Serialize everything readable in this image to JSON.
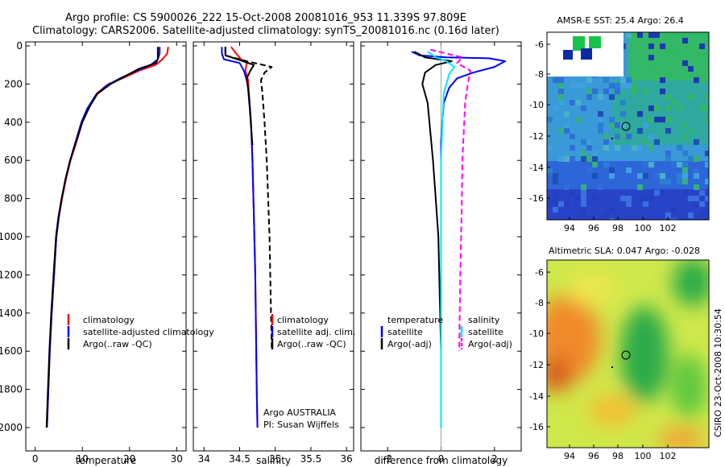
{
  "title": {
    "line1": "Argo profile: CS 5900026_222 15-Oct-2008 20081016_953 11.339S 97.809E",
    "line2": "Climatology: CARS2006. Satellite-adjusted climatology: synTS_20081016.nc (0.16d later)"
  },
  "side_label": "CSIRO 23-Oct-2008 10:30:54",
  "colors": {
    "red": "#ff0000",
    "blue": "#0000ff",
    "black": "#000000",
    "magenta": "#ff00ff",
    "cyan": "#00e5ff"
  },
  "chart_data": [
    {
      "type": "line",
      "id": "temperature",
      "xlabel": "temperature",
      "ylabel": "",
      "xlim": [
        -2,
        32
      ],
      "ylim": [
        2050,
        0
      ],
      "xticks": [
        0,
        10,
        20,
        30
      ],
      "yticks": [
        0,
        200,
        400,
        600,
        800,
        1000,
        1200,
        1400,
        1600,
        1800,
        2000
      ],
      "legend": [
        "climatology",
        "satellite-adjusted climatology",
        "Argo(..raw -QC)"
      ],
      "series": [
        {
          "name": "climatology",
          "color": "red",
          "dash": false,
          "points": [
            [
              28.2,
              5
            ],
            [
              28.0,
              40
            ],
            [
              27.0,
              70
            ],
            [
              25.5,
              100
            ],
            [
              22.0,
              130
            ],
            [
              18.5,
              170
            ],
            [
              15.5,
              200
            ],
            [
              13.0,
              250
            ],
            [
              11.5,
              320
            ],
            [
              10.0,
              400
            ],
            [
              8.8,
              500
            ],
            [
              7.5,
              600
            ],
            [
              6.5,
              700
            ],
            [
              5.7,
              800
            ],
            [
              5.0,
              900
            ],
            [
              4.5,
              1000
            ],
            [
              4.0,
              1200
            ],
            [
              3.5,
              1400
            ],
            [
              3.1,
              1600
            ],
            [
              2.8,
              1800
            ],
            [
              2.5,
              2000
            ]
          ]
        },
        {
          "name": "satellite-adjusted climatology",
          "color": "blue",
          "dash": false,
          "points": [
            [
              26.4,
              5
            ],
            [
              26.4,
              40
            ],
            [
              26.0,
              70
            ],
            [
              24.5,
              100
            ],
            [
              21.5,
              130
            ],
            [
              18.0,
              170
            ],
            [
              15.0,
              210
            ],
            [
              12.8,
              260
            ],
            [
              11.0,
              330
            ],
            [
              9.8,
              400
            ],
            [
              8.6,
              500
            ],
            [
              7.4,
              600
            ],
            [
              6.4,
              700
            ],
            [
              5.6,
              800
            ],
            [
              5.0,
              900
            ],
            [
              4.5,
              1000
            ],
            [
              4.0,
              1200
            ],
            [
              3.5,
              1400
            ],
            [
              3.1,
              1600
            ],
            [
              2.8,
              1800
            ],
            [
              2.5,
              2000
            ]
          ]
        },
        {
          "name": "Argo(..raw -QC)",
          "color": "black",
          "dash": false,
          "points": [
            [
              26.0,
              5
            ],
            [
              26.0,
              70
            ],
            [
              25.6,
              90
            ],
            [
              22.0,
              120
            ],
            [
              19.0,
              160
            ],
            [
              16.0,
              200
            ],
            [
              13.2,
              250
            ],
            [
              11.5,
              320
            ],
            [
              10.0,
              400
            ],
            [
              8.7,
              500
            ],
            [
              7.4,
              600
            ],
            [
              6.4,
              700
            ],
            [
              5.6,
              800
            ],
            [
              4.9,
              900
            ],
            [
              4.4,
              1000
            ],
            [
              3.9,
              1200
            ],
            [
              3.4,
              1400
            ],
            [
              3.0,
              1600
            ],
            [
              2.7,
              1800
            ],
            [
              2.4,
              2000
            ]
          ]
        }
      ],
      "annotations": []
    },
    {
      "type": "line",
      "id": "salinity",
      "xlabel": "salinity",
      "ylabel": "",
      "xlim": [
        33.85,
        36.1
      ],
      "ylim": [
        2050,
        0
      ],
      "xticks": [
        34,
        34.5,
        35,
        35.5,
        36
      ],
      "yticks": [
        0,
        200,
        400,
        600,
        800,
        1000,
        1200,
        1400,
        1600,
        1800,
        2000
      ],
      "legend": [
        "climatology",
        "satellite adj. clim.",
        "Argo(..raw -QC)"
      ],
      "series": [
        {
          "name": "climatology",
          "color": "red",
          "dash": false,
          "points": [
            [
              34.38,
              5
            ],
            [
              34.45,
              40
            ],
            [
              34.52,
              70
            ],
            [
              34.6,
              90
            ],
            [
              34.58,
              130
            ],
            [
              34.62,
              180
            ],
            [
              34.63,
              250
            ],
            [
              34.66,
              400
            ],
            [
              34.68,
              600
            ],
            [
              34.7,
              900
            ],
            [
              34.72,
              1200
            ],
            [
              34.73,
              1500
            ],
            [
              34.74,
              1800
            ],
            [
              34.75,
              2000
            ]
          ]
        },
        {
          "name": "satellite adj. clim.",
          "color": "blue",
          "dash": false,
          "points": [
            [
              34.25,
              5
            ],
            [
              34.25,
              40
            ],
            [
              34.28,
              70
            ],
            [
              34.5,
              90
            ],
            [
              34.56,
              130
            ],
            [
              34.6,
              180
            ],
            [
              34.63,
              250
            ],
            [
              34.66,
              400
            ],
            [
              34.68,
              600
            ],
            [
              34.7,
              900
            ],
            [
              34.72,
              1200
            ],
            [
              34.73,
              1500
            ],
            [
              34.74,
              1800
            ],
            [
              34.75,
              2000
            ]
          ]
        },
        {
          "name": "Argo(..raw -QC)",
          "color": "black",
          "dash": false,
          "points": [
            [
              34.3,
              5
            ],
            [
              34.3,
              50
            ],
            [
              34.55,
              80
            ],
            [
              34.7,
              100
            ],
            [
              34.65,
              130
            ],
            [
              34.6,
              170
            ],
            [
              34.62,
              230
            ],
            [
              34.64,
              320
            ],
            [
              34.66,
              420
            ],
            [
              34.68,
              520
            ]
          ]
        },
        {
          "name": "Argo(..raw -QC) adj",
          "color": "black",
          "dash": true,
          "points": [
            [
              34.3,
              5
            ],
            [
              34.3,
              50
            ],
            [
              34.6,
              80
            ],
            [
              34.95,
              110
            ],
            [
              34.85,
              140
            ],
            [
              34.8,
              180
            ],
            [
              34.82,
              250
            ],
            [
              34.85,
              400
            ],
            [
              34.88,
              600
            ],
            [
              34.9,
              800
            ],
            [
              34.92,
              1000
            ],
            [
              34.93,
              1200
            ],
            [
              34.94,
              1400
            ],
            [
              34.95,
              1580
            ]
          ]
        }
      ],
      "annotations": [
        "Argo AUSTRALIA",
        "PI: Susan Wijffels"
      ]
    },
    {
      "type": "line",
      "id": "difference",
      "xlabel": "difference from climatology",
      "ylabel": "",
      "xlim": [
        -3.0,
        3.0
      ],
      "ylim": [
        2050,
        0
      ],
      "xticks": [
        -2,
        0,
        2
      ],
      "yticks": [
        0,
        200,
        400,
        600,
        800,
        1000,
        1200,
        1400,
        1600,
        1800,
        2000
      ],
      "legend_left": [
        "temperature",
        "satellite",
        "Argo(-adj)"
      ],
      "legend_right": [
        "salinity",
        "satellite",
        "Argo(-adj)"
      ],
      "series": [
        {
          "name": "temperature satellite",
          "color": "blue",
          "dash": false,
          "points": [
            [
              -1.1,
              30
            ],
            [
              -0.8,
              50
            ],
            [
              0.2,
              60
            ],
            [
              1.8,
              65
            ],
            [
              2.4,
              80
            ],
            [
              2.0,
              110
            ],
            [
              1.2,
              140
            ],
            [
              0.6,
              170
            ],
            [
              0.3,
              220
            ],
            [
              0.1,
              300
            ],
            [
              0.0,
              500
            ],
            [
              0.0,
              800
            ],
            [
              0.0,
              1200
            ],
            [
              0.0,
              1600
            ],
            [
              0.0,
              2000
            ]
          ]
        },
        {
          "name": "temperature Argo(-adj)",
          "color": "black",
          "dash": false,
          "points": [
            [
              -1.0,
              30
            ],
            [
              -0.6,
              60
            ],
            [
              0.4,
              80
            ],
            [
              -0.2,
              100
            ],
            [
              -0.6,
              140
            ],
            [
              -0.7,
              200
            ],
            [
              -0.5,
              300
            ],
            [
              -0.4,
              450
            ],
            [
              -0.3,
              600
            ],
            [
              -0.2,
              800
            ],
            [
              -0.1,
              1000
            ],
            [
              -0.05,
              1300
            ],
            [
              0.0,
              1600
            ],
            [
              0.0,
              2000
            ]
          ]
        },
        {
          "name": "salinity satellite",
          "color": "cyan",
          "dash": false,
          "points": [
            [
              -0.5,
              30
            ],
            [
              -0.2,
              60
            ],
            [
              0.2,
              80
            ],
            [
              0.5,
              110
            ],
            [
              0.3,
              150
            ],
            [
              0.1,
              250
            ],
            [
              0.05,
              400
            ],
            [
              0.0,
              600
            ],
            [
              0.0,
              900
            ],
            [
              0.0,
              1300
            ],
            [
              0.0,
              1700
            ],
            [
              0.0,
              2000
            ]
          ]
        },
        {
          "name": "salinity Argo(-adj)",
          "color": "magenta",
          "dash": true,
          "points": [
            [
              -0.4,
              20
            ],
            [
              0.2,
              40
            ],
            [
              0.8,
              60
            ],
            [
              0.6,
              90
            ],
            [
              1.1,
              130
            ],
            [
              1.0,
              200
            ],
            [
              0.9,
              300
            ],
            [
              0.85,
              450
            ],
            [
              0.8,
              600
            ],
            [
              0.78,
              800
            ],
            [
              0.75,
              1000
            ],
            [
              0.72,
              1200
            ],
            [
              0.7,
              1400
            ],
            [
              0.68,
              1600
            ]
          ]
        }
      ],
      "annotations": []
    }
  ],
  "maps": [
    {
      "id": "sst",
      "title": "AMSR-E SST: 25.4 Argo: 26.4",
      "xticks": [
        "94",
        "96",
        "98",
        "100",
        "102"
      ],
      "yticks": [
        "-6",
        "-8",
        "-10",
        "-12",
        "-14",
        "-16"
      ]
    },
    {
      "id": "sla",
      "title": "Altimetric SLA: 0.047 Argo: -0.028",
      "xticks": [
        "94",
        "96",
        "98",
        "100",
        "102"
      ],
      "yticks": [
        "-6",
        "-8",
        "-10",
        "-12",
        "-14",
        "-16"
      ]
    }
  ]
}
